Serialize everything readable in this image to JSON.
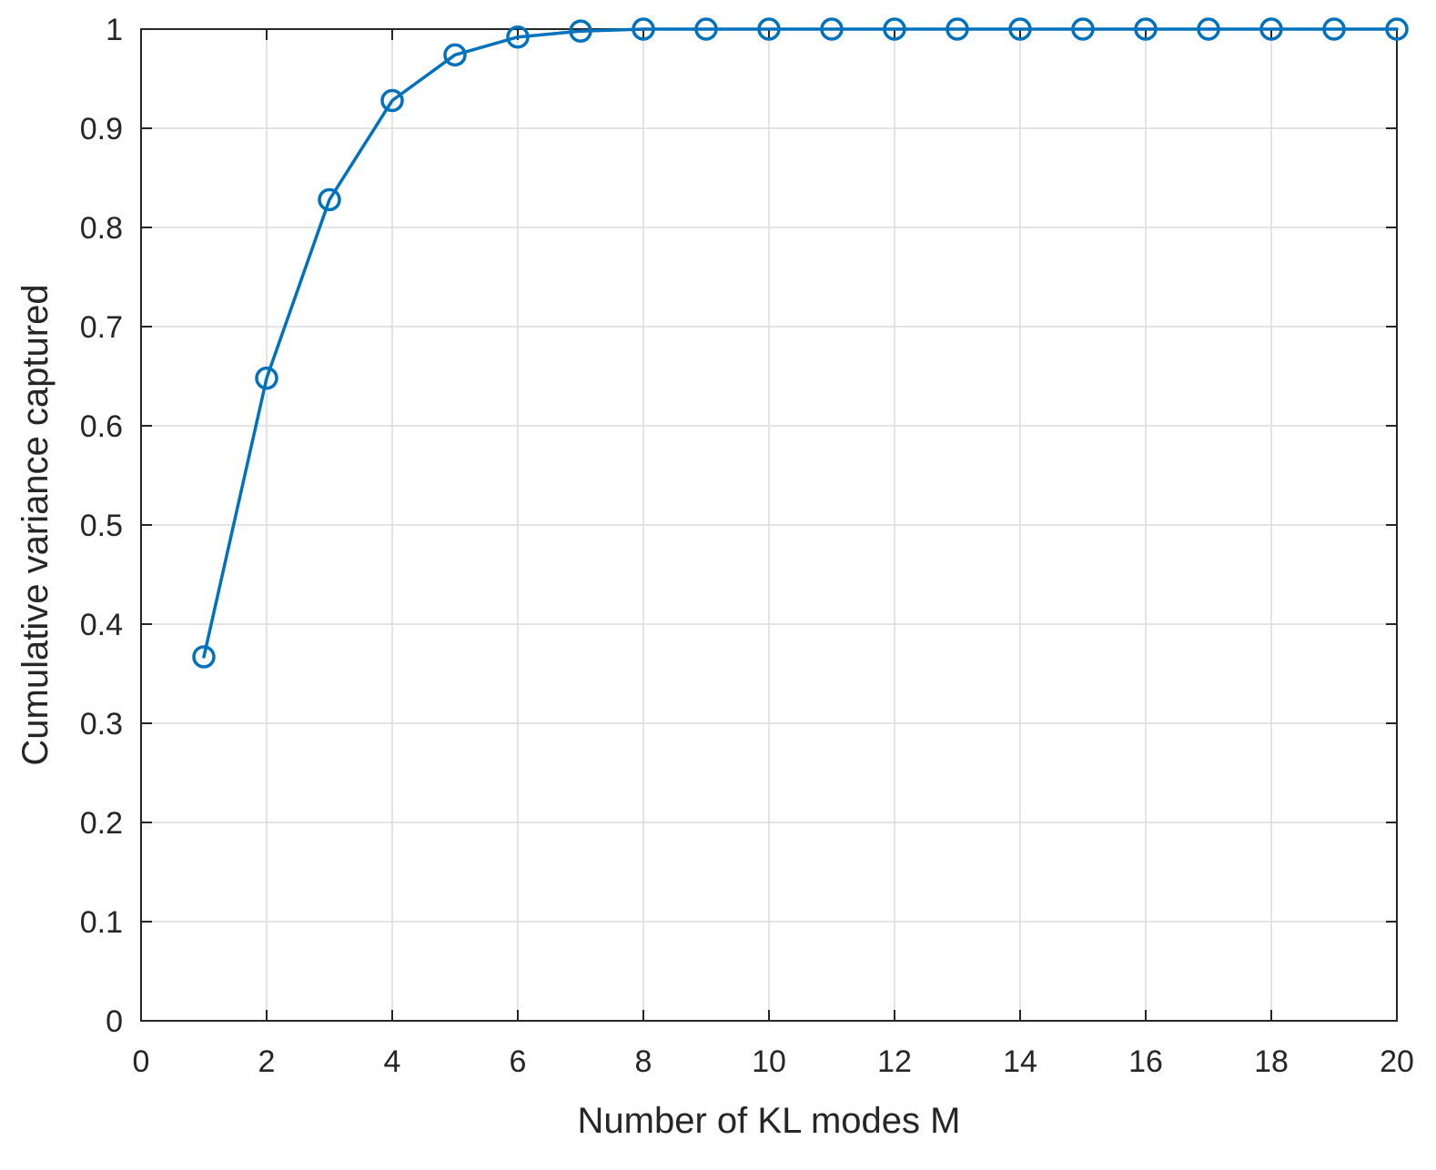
{
  "chart_data": {
    "type": "line",
    "title": "",
    "xlabel": "Number of KL modes M",
    "ylabel": "Cumulative variance captured",
    "xlim": [
      0,
      20
    ],
    "ylim": [
      0,
      1
    ],
    "xticks": [
      0,
      2,
      4,
      6,
      8,
      10,
      12,
      14,
      16,
      18,
      20
    ],
    "yticks": [
      0,
      0.1,
      0.2,
      0.3,
      0.4,
      0.5,
      0.6,
      0.7,
      0.8,
      0.9,
      1
    ],
    "grid": true,
    "legend": "none",
    "marker": "circle",
    "colors": {
      "series": "#0072BD",
      "axes": "#262626",
      "grid": "#dcdcdc"
    },
    "series": [
      {
        "x": [
          1,
          2,
          3,
          4,
          5,
          6,
          7,
          8,
          9,
          10,
          11,
          12,
          13,
          14,
          15,
          16,
          17,
          18,
          19,
          20
        ],
        "values": [
          0.367,
          0.648,
          0.828,
          0.928,
          0.974,
          0.992,
          0.998,
          1.0,
          1.0,
          1.0,
          1.0,
          1.0,
          1.0,
          1.0,
          1.0,
          1.0,
          1.0,
          1.0,
          1.0,
          1.0
        ]
      }
    ]
  }
}
